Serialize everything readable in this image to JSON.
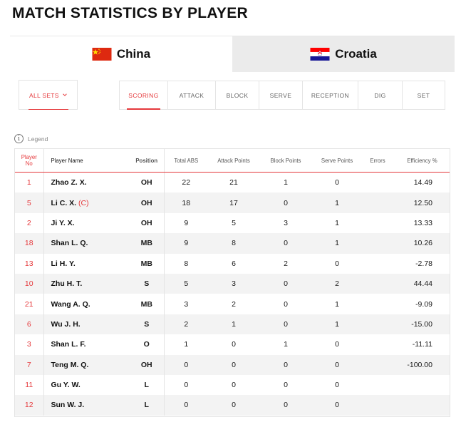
{
  "page_title": "MATCH STATISTICS BY PLAYER",
  "teams": [
    {
      "name": "China",
      "flag": "china-flag"
    },
    {
      "name": "Croatia",
      "flag": "croatia-flag"
    }
  ],
  "sets_filter": {
    "label": "ALL SETS"
  },
  "stat_tabs": [
    "SCORING",
    "ATTACK",
    "BLOCK",
    "SERVE",
    "RECEPTION",
    "DIG",
    "SET"
  ],
  "legend_label": "Legend",
  "columns": {
    "player_no_l1": "Player",
    "player_no_l2": "No",
    "name": "Player Name",
    "position": "Position",
    "total_abs": "Total ABS",
    "attack": "Attack Points",
    "block": "Block Points",
    "serve": "Serve Points",
    "errors": "Errors",
    "eff": "Efficiency %"
  },
  "players": [
    {
      "no": "1",
      "name": "Zhao Z. X.",
      "captain": "",
      "pos": "OH",
      "total": "22",
      "attack": "21",
      "block": "1",
      "serve": "0",
      "errors": "",
      "eff": "14.49"
    },
    {
      "no": "5",
      "name": "Li C. X.",
      "captain": "(C)",
      "pos": "OH",
      "total": "18",
      "attack": "17",
      "block": "0",
      "serve": "1",
      "errors": "",
      "eff": "12.50"
    },
    {
      "no": "2",
      "name": "Ji Y. X.",
      "captain": "",
      "pos": "OH",
      "total": "9",
      "attack": "5",
      "block": "3",
      "serve": "1",
      "errors": "",
      "eff": "13.33"
    },
    {
      "no": "18",
      "name": "Shan L. Q.",
      "captain": "",
      "pos": "MB",
      "total": "9",
      "attack": "8",
      "block": "0",
      "serve": "1",
      "errors": "",
      "eff": "10.26"
    },
    {
      "no": "13",
      "name": "Li H. Y.",
      "captain": "",
      "pos": "MB",
      "total": "8",
      "attack": "6",
      "block": "2",
      "serve": "0",
      "errors": "",
      "eff": "-2.78"
    },
    {
      "no": "10",
      "name": "Zhu H. T.",
      "captain": "",
      "pos": "S",
      "total": "5",
      "attack": "3",
      "block": "0",
      "serve": "2",
      "errors": "",
      "eff": "44.44"
    },
    {
      "no": "21",
      "name": "Wang A. Q.",
      "captain": "",
      "pos": "MB",
      "total": "3",
      "attack": "2",
      "block": "0",
      "serve": "1",
      "errors": "",
      "eff": "-9.09"
    },
    {
      "no": "6",
      "name": "Wu J. H.",
      "captain": "",
      "pos": "S",
      "total": "2",
      "attack": "1",
      "block": "0",
      "serve": "1",
      "errors": "",
      "eff": "-15.00"
    },
    {
      "no": "3",
      "name": "Shan L. F.",
      "captain": "",
      "pos": "O",
      "total": "1",
      "attack": "0",
      "block": "1",
      "serve": "0",
      "errors": "",
      "eff": "-11.11"
    },
    {
      "no": "7",
      "name": "Teng M. Q.",
      "captain": "",
      "pos": "OH",
      "total": "0",
      "attack": "0",
      "block": "0",
      "serve": "0",
      "errors": "",
      "eff": "-100.00"
    },
    {
      "no": "11",
      "name": "Gu Y. W.",
      "captain": "",
      "pos": "L",
      "total": "0",
      "attack": "0",
      "block": "0",
      "serve": "0",
      "errors": "",
      "eff": ""
    },
    {
      "no": "12",
      "name": "Sun W. J.",
      "captain": "",
      "pos": "L",
      "total": "0",
      "attack": "0",
      "block": "0",
      "serve": "0",
      "errors": "",
      "eff": ""
    }
  ],
  "colors": {
    "accent": "#e5383b",
    "inactive_tab_bg": "#ebebeb",
    "stripe": "#f3f3f3"
  }
}
